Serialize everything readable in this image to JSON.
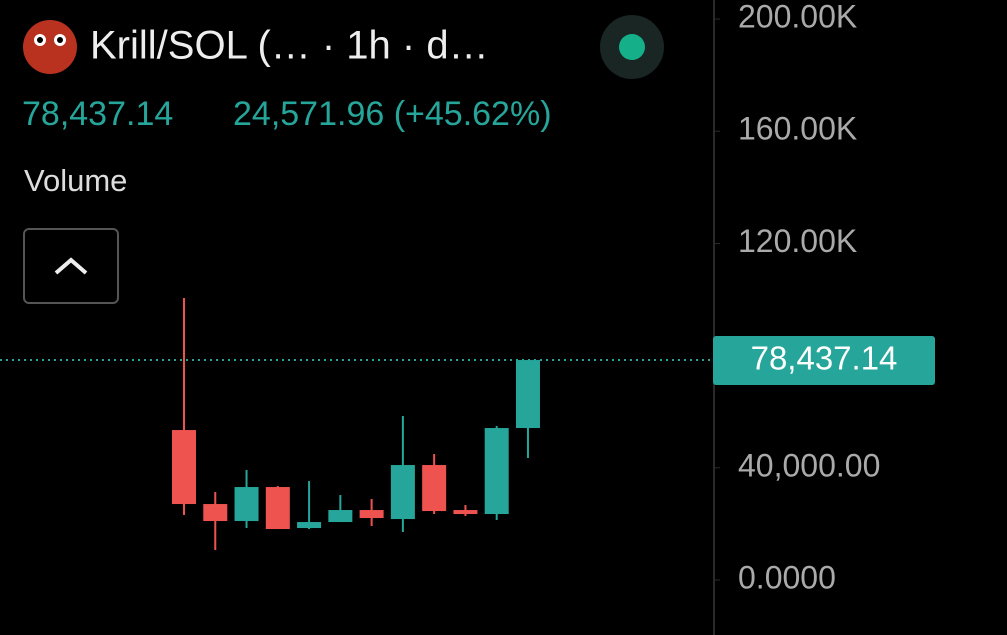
{
  "header": {
    "title": "Krill/SOL (…  · 1h · d…",
    "change": "24,571.96 (+45.62%)",
    "indicator": "Volume"
  },
  "chart_data": {
    "type": "candlestick",
    "categories": [
      null,
      null,
      null,
      null,
      null,
      null,
      null,
      null,
      null,
      null,
      null,
      null
    ],
    "open": [
      53476,
      27094,
      21034,
      33155,
      18538,
      20677,
      24955,
      21747,
      40998,
      24955,
      23529,
      54189
    ],
    "high": [
      100535,
      31373,
      39216,
      33512,
      35294,
      30303,
      28877,
      58467,
      44920,
      26738,
      54902,
      78437.14
    ],
    "low": [
      23173,
      10695,
      18538,
      18182,
      18182,
      20677,
      19251,
      17112,
      23529,
      22816,
      21390,
      43494
    ],
    "close": [
      27094,
      21034,
      33155,
      18182,
      20677,
      24955,
      22103,
      40998,
      24599,
      23529,
      54189,
      78437.14
    ],
    "up_color": "#26a69a",
    "down_color": "#ef5350",
    "ylim": [
      -19600,
      206800
    ],
    "yticks": [
      {
        "value": 0,
        "label": "0.0000"
      },
      {
        "value": 40000,
        "label": "40,000.00"
      },
      {
        "value": 120000,
        "label": "120.00K"
      },
      {
        "value": 160000,
        "label": "160.00K"
      },
      {
        "value": 200000,
        "label": "200.00K"
      }
    ],
    "price_line": {
      "value": 78437.14,
      "label": "78,437.14"
    }
  }
}
